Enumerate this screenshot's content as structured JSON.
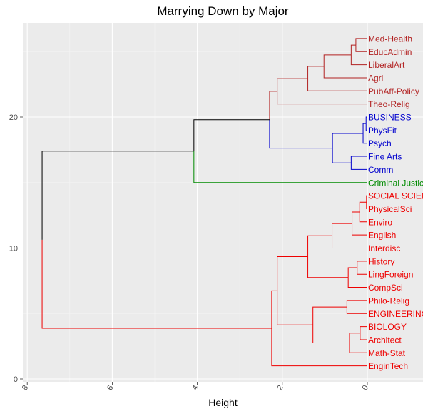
{
  "chart_data": {
    "type": "dendrogram",
    "title": "Marrying Down by Major",
    "xlabel": "Height",
    "ylabel": "",
    "orientation": "horizontal",
    "height_axis": {
      "ticks": [
        8,
        6,
        4,
        2,
        0
      ],
      "range": [
        9.2,
        -1.3
      ]
    },
    "position_axis": {
      "ticks": [
        0,
        10,
        20
      ],
      "range": [
        0,
        27
      ]
    },
    "grid": true,
    "leaves": [
      {
        "label": "Med-Health",
        "pos": 26,
        "color": "#b22222"
      },
      {
        "label": "EducAdmin",
        "pos": 25,
        "color": "#b22222"
      },
      {
        "label": "LiberalArt",
        "pos": 24,
        "color": "#b22222"
      },
      {
        "label": "Agri",
        "pos": 23,
        "color": "#b22222"
      },
      {
        "label": "PubAff-Policy",
        "pos": 22,
        "color": "#b22222"
      },
      {
        "label": "Theo-Relig",
        "pos": 21,
        "color": "#b22222"
      },
      {
        "label": "BUSINESS",
        "pos": 20,
        "color": "#0000cd"
      },
      {
        "label": "PhysFit",
        "pos": 19,
        "color": "#0000cd"
      },
      {
        "label": "Psych",
        "pos": 18,
        "color": "#0000cd"
      },
      {
        "label": "Fine Arts",
        "pos": 17,
        "color": "#0000cd"
      },
      {
        "label": "Comm",
        "pos": 16,
        "color": "#0000cd"
      },
      {
        "label": "Criminal Justice",
        "pos": 15,
        "color": "#008b00"
      },
      {
        "label": "SOCIAL SCIENCE",
        "pos": 14,
        "color": "#ee0000"
      },
      {
        "label": "PhysicalSci",
        "pos": 13,
        "color": "#ee0000"
      },
      {
        "label": "Enviro",
        "pos": 12,
        "color": "#ee0000"
      },
      {
        "label": "English",
        "pos": 11,
        "color": "#ee0000"
      },
      {
        "label": "Interdisc",
        "pos": 10,
        "color": "#ee0000"
      },
      {
        "label": "History",
        "pos": 9,
        "color": "#ee0000"
      },
      {
        "label": "LingForeign",
        "pos": 8,
        "color": "#ee0000"
      },
      {
        "label": "CompSci",
        "pos": 7,
        "color": "#ee0000"
      },
      {
        "label": "Philo-Relig",
        "pos": 6,
        "color": "#ee0000"
      },
      {
        "label": "ENGINEERING",
        "pos": 5,
        "color": "#ee0000"
      },
      {
        "label": "BIOLOGY",
        "pos": 4,
        "color": "#ee0000"
      },
      {
        "label": "Architect",
        "pos": 3,
        "color": "#ee0000"
      },
      {
        "label": "Math-Stat",
        "pos": 2,
        "color": "#ee0000"
      },
      {
        "label": "EnginTech",
        "pos": 1,
        "color": "#ee0000"
      }
    ],
    "merges": [
      {
        "h": 0.03,
        "lo": 19,
        "hi": 20,
        "color": "#0000cd"
      },
      {
        "h": 0.1,
        "lo": 18,
        "hi": 19.5,
        "color": "#0000cd"
      },
      {
        "h": 0.38,
        "lo": 16,
        "hi": 17,
        "color": "#0000cd"
      },
      {
        "h": 0.82,
        "lo": 16.5,
        "hi": 18.75,
        "color": "#0000cd"
      },
      {
        "h": 0.02,
        "lo": 13,
        "hi": 14,
        "color": "#ee0000"
      },
      {
        "h": 0.18,
        "lo": 12,
        "hi": 13.5,
        "color": "#ee0000"
      },
      {
        "h": 0.36,
        "lo": 11,
        "hi": 12.75,
        "color": "#ee0000"
      },
      {
        "h": 0.83,
        "lo": 10,
        "hi": 11.875,
        "color": "#ee0000"
      },
      {
        "h": 0.24,
        "lo": 8,
        "hi": 9,
        "color": "#ee0000"
      },
      {
        "h": 0.45,
        "lo": 7,
        "hi": 8.5,
        "color": "#ee0000"
      },
      {
        "h": 1.4,
        "lo": 7.75,
        "hi": 10.9375,
        "color": "#ee0000"
      },
      {
        "h": 0.48,
        "lo": 5,
        "hi": 6,
        "color": "#ee0000"
      },
      {
        "h": 0.17,
        "lo": 3,
        "hi": 4,
        "color": "#ee0000"
      },
      {
        "h": 0.42,
        "lo": 2,
        "hi": 3.5,
        "color": "#ee0000"
      },
      {
        "h": 1.28,
        "lo": 2.75,
        "hi": 5.5,
        "color": "#ee0000"
      },
      {
        "h": 2.12,
        "lo": 4.125,
        "hi": 9.34375,
        "color": "#ee0000"
      },
      {
        "h": 2.25,
        "lo": 1,
        "hi": 6.734375,
        "color": "#ee0000"
      },
      {
        "h": 0.27,
        "lo": 25,
        "hi": 26,
        "color": "#b22222"
      },
      {
        "h": 0.38,
        "lo": 24,
        "hi": 25.5,
        "color": "#b22222"
      },
      {
        "h": 1.02,
        "lo": 23,
        "hi": 24.75,
        "color": "#b22222"
      },
      {
        "h": 1.4,
        "lo": 22,
        "hi": 23.875,
        "color": "#b22222"
      },
      {
        "h": 2.12,
        "lo": 21,
        "hi": 22.9375,
        "color": "#b22222"
      },
      {
        "h": 2.3,
        "lo": 17.625,
        "hi": 21.96875,
        "color": "#b22222"
      },
      {
        "h": 4.08,
        "lo": 15,
        "hi": 19.796875,
        "color": "#000000"
      },
      {
        "h": 7.65,
        "lo": 3.8671875,
        "hi": 17.3984375,
        "color": "#000000"
      }
    ],
    "merge_colors": {
      "23": {
        "lower_leg": "#008b00",
        "upper_leg": "#000000"
      },
      "24": {
        "lower_leg": "#ee0000",
        "upper_leg": "#000000"
      },
      "22": {
        "lower_leg": "#0000cd",
        "upper_leg": "#b22222"
      }
    }
  }
}
